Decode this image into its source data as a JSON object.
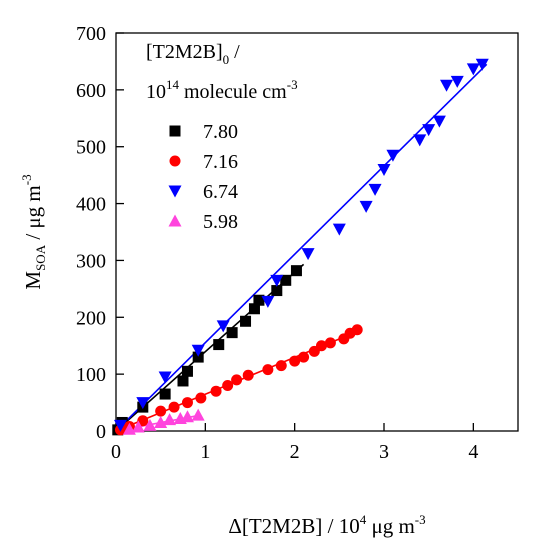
{
  "chart_data": {
    "type": "scatter",
    "xlabel": {
      "main": "Δ[T2M2B] / 10",
      "sup": "4",
      "unit": " μg m",
      "unit_sup": "-3"
    },
    "ylabel": {
      "main": "M",
      "sub": "SOA",
      "unit": "  /  μg m",
      "unit_sup": "-3"
    },
    "xlim": [
      0,
      4.5
    ],
    "ylim": [
      0,
      700
    ],
    "xticks": [
      "0",
      "1",
      "2",
      "3",
      "4"
    ],
    "yticks": [
      "0",
      "100",
      "200",
      "300",
      "400",
      "500",
      "600",
      "700"
    ],
    "legend": {
      "title_line1": {
        "main": "[T2M2B]",
        "sub": "0",
        "rest": " /"
      },
      "title_line2": {
        "main": "10",
        "sup": "14",
        "rest": " molecule cm",
        "rest_sup": "-3"
      },
      "placement": "top-left"
    },
    "series": [
      {
        "name": "7.80",
        "marker": "square",
        "color": "#000000",
        "points": [
          [
            0.02,
            2
          ],
          [
            0.07,
            15
          ],
          [
            0.3,
            42
          ],
          [
            0.55,
            65
          ],
          [
            0.75,
            88
          ],
          [
            0.8,
            105
          ],
          [
            0.92,
            130
          ],
          [
            1.15,
            152
          ],
          [
            1.3,
            173
          ],
          [
            1.45,
            193
          ],
          [
            1.55,
            215
          ],
          [
            1.6,
            230
          ],
          [
            1.8,
            247
          ],
          [
            1.9,
            265
          ],
          [
            2.02,
            282
          ]
        ],
        "fit": [
          [
            0,
            0
          ],
          [
            2.1,
            293
          ]
        ]
      },
      {
        "name": "7.16",
        "marker": "circle",
        "color": "#ff0000",
        "points": [
          [
            0.05,
            2
          ],
          [
            0.15,
            8
          ],
          [
            0.3,
            18
          ],
          [
            0.5,
            35
          ],
          [
            0.65,
            42
          ],
          [
            0.8,
            50
          ],
          [
            0.95,
            58
          ],
          [
            1.12,
            70
          ],
          [
            1.25,
            80
          ],
          [
            1.35,
            90
          ],
          [
            1.48,
            98
          ],
          [
            1.7,
            108
          ],
          [
            1.85,
            115
          ],
          [
            2.0,
            123
          ],
          [
            2.1,
            130
          ],
          [
            2.22,
            140
          ],
          [
            2.3,
            150
          ],
          [
            2.4,
            155
          ],
          [
            2.55,
            162
          ],
          [
            2.62,
            172
          ],
          [
            2.7,
            178
          ]
        ],
        "fit": [
          [
            0,
            0
          ],
          [
            2.75,
            178
          ]
        ]
      },
      {
        "name": "6.74",
        "marker": "triangle-down",
        "color": "#0000ff",
        "points": [
          [
            0.05,
            10
          ],
          [
            0.3,
            50
          ],
          [
            0.55,
            95
          ],
          [
            0.92,
            142
          ],
          [
            1.2,
            185
          ],
          [
            1.7,
            228
          ],
          [
            1.8,
            265
          ],
          [
            2.15,
            312
          ],
          [
            2.5,
            355
          ],
          [
            2.8,
            395
          ],
          [
            2.9,
            425
          ],
          [
            3.0,
            460
          ],
          [
            3.1,
            485
          ],
          [
            3.4,
            512
          ],
          [
            3.5,
            530
          ],
          [
            3.62,
            545
          ],
          [
            3.7,
            608
          ],
          [
            3.82,
            615
          ],
          [
            4.0,
            637
          ],
          [
            4.1,
            645
          ]
        ],
        "fit": [
          [
            0,
            0
          ],
          [
            4.15,
            645
          ]
        ]
      },
      {
        "name": "5.98",
        "marker": "triangle-up",
        "color": "#ff44dd",
        "points": [
          [
            0.15,
            3
          ],
          [
            0.25,
            7
          ],
          [
            0.38,
            10
          ],
          [
            0.5,
            15
          ],
          [
            0.6,
            20
          ],
          [
            0.72,
            22
          ],
          [
            0.8,
            25
          ],
          [
            0.92,
            28
          ]
        ],
        "fit": [
          [
            0,
            0
          ],
          [
            0.95,
            28
          ]
        ]
      }
    ]
  }
}
